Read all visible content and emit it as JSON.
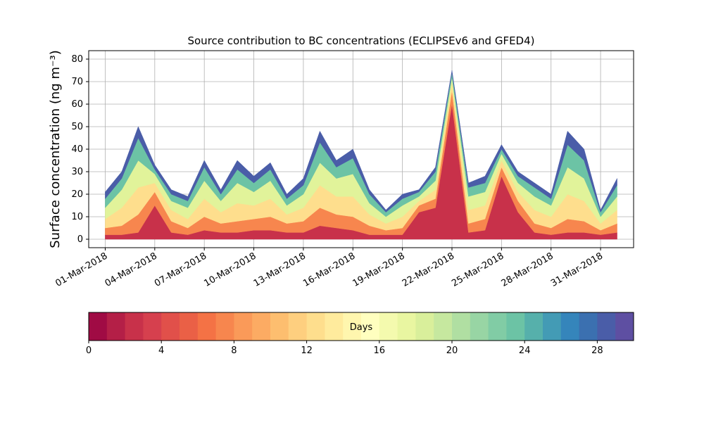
{
  "chart_data": {
    "type": "stacked_area",
    "title": "Source contribution to BC concentrations (ECLIPSEv6 and GFED4)",
    "y_label": "Surface concentration (ng m⁻³)",
    "x": [
      "2018-03-01",
      "2018-03-02",
      "2018-03-03",
      "2018-03-04",
      "2018-03-05",
      "2018-03-06",
      "2018-03-07",
      "2018-03-08",
      "2018-03-09",
      "2018-03-10",
      "2018-03-11",
      "2018-03-12",
      "2018-03-13",
      "2018-03-14",
      "2018-03-15",
      "2018-03-16",
      "2018-03-17",
      "2018-03-18",
      "2018-03-19",
      "2018-03-20",
      "2018-03-21",
      "2018-03-22",
      "2018-03-23",
      "2018-03-24",
      "2018-03-25",
      "2018-03-26",
      "2018-03-27",
      "2018-03-28",
      "2018-03-29",
      "2018-03-30",
      "2018-03-31",
      "2018-04-01"
    ],
    "series": [
      {
        "color": "#c8314a",
        "values": [
          2,
          2,
          3,
          15,
          3,
          2,
          4,
          3,
          3,
          4,
          4,
          3,
          3,
          6,
          5,
          4,
          2,
          2,
          2,
          12,
          14,
          60,
          3,
          4,
          28,
          12,
          3,
          2,
          3,
          3,
          2,
          3
        ]
      },
      {
        "color": "#f7864e",
        "values": [
          3,
          4,
          8,
          6,
          5,
          3,
          6,
          4,
          5,
          5,
          6,
          4,
          5,
          8,
          6,
          6,
          4,
          2,
          3,
          3,
          4,
          6,
          4,
          5,
          4,
          5,
          4,
          3,
          6,
          5,
          2,
          4
        ]
      },
      {
        "color": "#fede8d",
        "values": [
          4,
          8,
          12,
          4,
          5,
          4,
          8,
          5,
          8,
          6,
          8,
          4,
          6,
          10,
          8,
          9,
          5,
          3,
          5,
          2,
          4,
          4,
          6,
          6,
          3,
          4,
          6,
          5,
          11,
          9,
          3,
          6
        ]
      },
      {
        "color": "#e1f39a",
        "values": [
          5,
          8,
          12,
          4,
          4,
          5,
          8,
          5,
          9,
          6,
          8,
          4,
          6,
          10,
          8,
          10,
          5,
          3,
          5,
          2,
          4,
          2,
          6,
          6,
          3,
          4,
          6,
          5,
          12,
          10,
          3,
          6
        ]
      },
      {
        "color": "#6cc3a5",
        "values": [
          4,
          5,
          10,
          2,
          3,
          3,
          6,
          3,
          6,
          4,
          5,
          3,
          4,
          9,
          5,
          7,
          4,
          2,
          3,
          2,
          4,
          2,
          4,
          4,
          2,
          3,
          4,
          3,
          10,
          8,
          2,
          5
        ]
      },
      {
        "color": "#4a5da8",
        "values": [
          3,
          3,
          5,
          2,
          2,
          2,
          3,
          2,
          4,
          3,
          3,
          2,
          3,
          5,
          3,
          4,
          2,
          1,
          2,
          1,
          2,
          1,
          2,
          3,
          2,
          2,
          2,
          2,
          6,
          5,
          1,
          3
        ]
      }
    ],
    "xlim": [
      "2018-02-28",
      "2018-04-02"
    ],
    "xticks": [
      {
        "value": "2018-03-01",
        "label": "01-Mar-2018"
      },
      {
        "value": "2018-03-04",
        "label": "04-Mar-2018"
      },
      {
        "value": "2018-03-07",
        "label": "07-Mar-2018"
      },
      {
        "value": "2018-03-10",
        "label": "10-Mar-2018"
      },
      {
        "value": "2018-03-13",
        "label": "13-Mar-2018"
      },
      {
        "value": "2018-03-16",
        "label": "16-Mar-2018"
      },
      {
        "value": "2018-03-19",
        "label": "19-Mar-2018"
      },
      {
        "value": "2018-03-22",
        "label": "22-Mar-2018"
      },
      {
        "value": "2018-03-25",
        "label": "25-Mar-2018"
      },
      {
        "value": "2018-03-28",
        "label": "28-Mar-2018"
      },
      {
        "value": "2018-03-31",
        "label": "31-Mar-2018"
      }
    ],
    "ylim": [
      -3.75,
      83.75
    ],
    "yticks": [
      0,
      10,
      20,
      30,
      40,
      50,
      60,
      70,
      80
    ],
    "grid": true,
    "colorbar": {
      "label": "Days",
      "lim": [
        0,
        30
      ],
      "ticks": [
        0,
        4,
        8,
        12,
        16,
        20,
        24,
        28
      ],
      "colors": [
        "#a00b44",
        "#b41f47",
        "#c8314a",
        "#d6404e",
        "#e1504a",
        "#ea6046",
        "#f47245",
        "#f7864e",
        "#fa9a59",
        "#fcab63",
        "#fdbe6f",
        "#fecf7f",
        "#fede8d",
        "#ffeb9d",
        "#fff6ae",
        "#ffffbf",
        "#f4faae",
        "#e9f6a1",
        "#d9ef9b",
        "#c6e89f",
        "#b0dfa2",
        "#98d5a4",
        "#81cca5",
        "#6cc3a5",
        "#56b0ab",
        "#439bb5",
        "#3585bb",
        "#3b70b0",
        "#4a5da8",
        "#5e4fa2"
      ]
    }
  }
}
